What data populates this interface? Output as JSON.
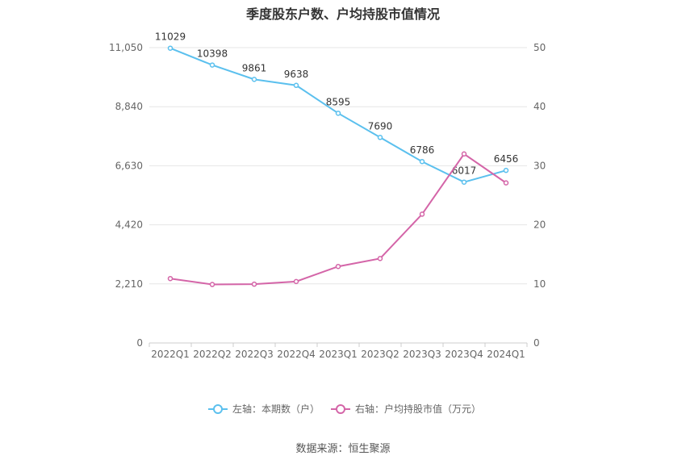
{
  "title": "季度股东户数、户均持股市值情况",
  "source": "数据来源：恒生聚源",
  "chart_data": {
    "type": "line",
    "categories": [
      "2022Q1",
      "2022Q2",
      "2022Q3",
      "2022Q4",
      "2023Q1",
      "2023Q2",
      "2023Q3",
      "2023Q4",
      "2024Q1"
    ],
    "series": [
      {
        "name": "左轴：本期数（户）",
        "axis": "left",
        "color": "#5bc0ee",
        "values": [
          11029,
          10398,
          9861,
          9638,
          8595,
          7690,
          6786,
          6017,
          6456
        ],
        "labels": [
          "11029",
          "10398",
          "9861",
          "9638",
          "8595",
          "7690",
          "6786",
          "6017",
          "6456"
        ]
      },
      {
        "name": "右轴：户均持股市值（万元）",
        "axis": "right",
        "color": "#d465a8",
        "values": [
          10.9,
          9.9,
          9.95,
          10.4,
          12.95,
          14.3,
          21.8,
          32.0,
          27.1
        ]
      }
    ],
    "left_axis": {
      "ylim": [
        0,
        11050
      ],
      "ticks": [
        "0",
        "2,210",
        "4,420",
        "6,630",
        "8,840",
        "11,050"
      ]
    },
    "right_axis": {
      "ylim": [
        0,
        50
      ],
      "ticks": [
        "0",
        "10",
        "20",
        "30",
        "40",
        "50"
      ]
    },
    "grid": true,
    "legend_position": "bottom"
  }
}
